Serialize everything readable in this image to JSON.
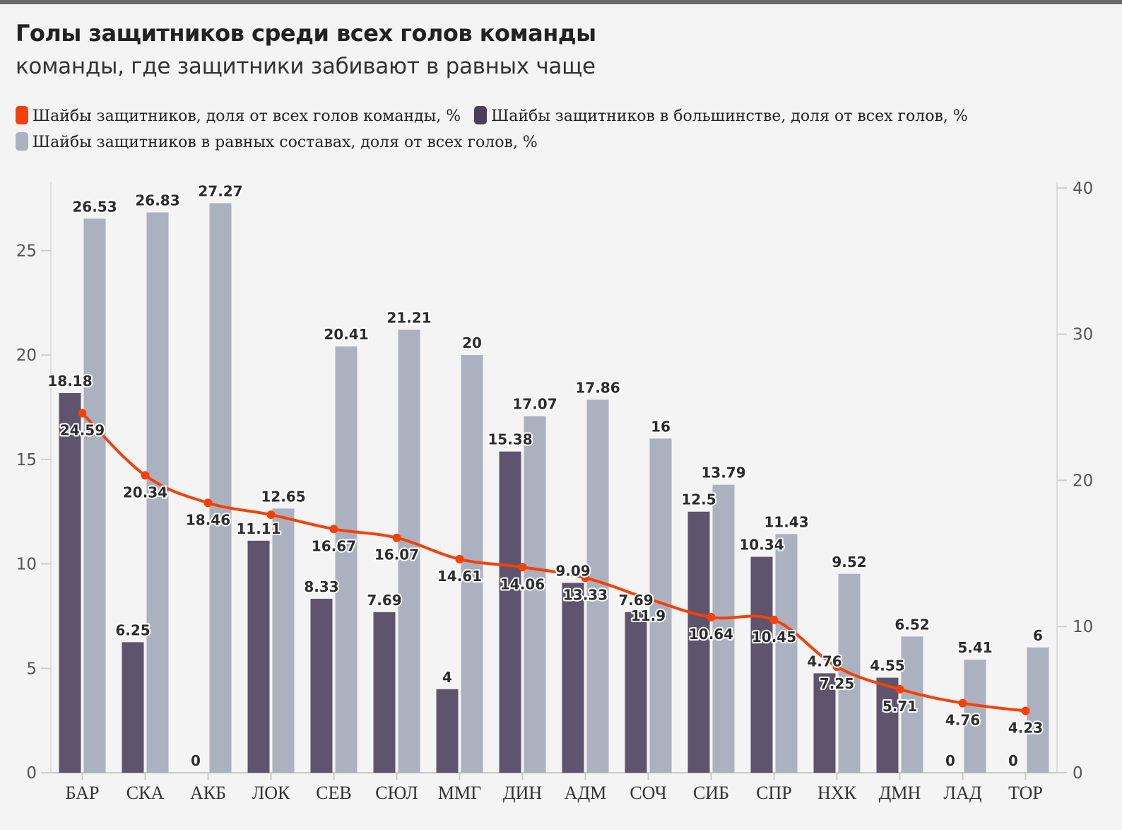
{
  "title": "Голы защитников среди всех голов команды",
  "subtitle": "команды, где защитники забивают в равных чаще",
  "colors": {
    "share_total": "#f4410a",
    "share_pp": "#5f546d",
    "share_ev": "#abb1bf",
    "background": "#f4f4f4"
  },
  "legend": [
    {
      "label": "Шайбы защитников, доля от всех голов команды, %",
      "color": "#f4410a"
    },
    {
      "label": "Шайбы защитников в большинстве, доля от всех голов, %",
      "color": "#4a3f57"
    },
    {
      "label": "Шайбы защитников в равных составах, доля от всех голов, %",
      "color": "#abb1bf"
    }
  ],
  "chart_data": {
    "type": "bar+line",
    "title": "Голы защитников среди всех голов команды",
    "categories": [
      "БАР",
      "СКА",
      "АКБ",
      "ЛОК",
      "СЕВ",
      "СЮЛ",
      "ММГ",
      "ДИН",
      "АДМ",
      "СОЧ",
      "СИБ",
      "СПР",
      "НХК",
      "ДМН",
      "ЛАД",
      "ТОР"
    ],
    "series": [
      {
        "name": "Шайбы защитников в большинстве, доля от всех голов, %",
        "type": "bar",
        "axis": "left",
        "values": [
          18.18,
          6.25,
          0,
          11.11,
          8.33,
          7.69,
          4,
          15.38,
          9.09,
          7.69,
          12.5,
          10.34,
          4.76,
          4.55,
          0,
          0
        ],
        "labels": [
          "18.18",
          "6.25",
          "0",
          "11.11",
          "8.33",
          "7.69",
          "4",
          "15.38",
          "9.09",
          "7.69",
          "12.5",
          "10.34",
          "4.76",
          "4.55",
          "0",
          "0"
        ]
      },
      {
        "name": "Шайбы защитников в равных составах, доля от всех голов, %",
        "type": "bar",
        "axis": "left",
        "values": [
          26.53,
          26.83,
          27.27,
          12.65,
          20.41,
          21.21,
          20,
          17.07,
          17.86,
          16,
          13.79,
          11.43,
          9.52,
          6.52,
          5.41,
          6
        ],
        "labels": [
          "26.53",
          "26.83",
          "27.27",
          "12.65",
          "20.41",
          "21.21",
          "20",
          "17.07",
          "17.86",
          "16",
          "13.79",
          "11.43",
          "9.52",
          "6.52",
          "5.41",
          "6"
        ]
      },
      {
        "name": "Шайбы защитников, доля от всех голов команды, %",
        "type": "line",
        "axis": "right",
        "values": [
          24.59,
          20.34,
          18.46,
          17.65,
          16.67,
          16.07,
          14.61,
          14.06,
          13.33,
          11.9,
          10.64,
          10.45,
          7.25,
          5.71,
          4.76,
          4.23
        ],
        "labels": [
          "24.59",
          "20.34",
          "18.46",
          "",
          "16.67",
          "16.07",
          "14.61",
          "14.06",
          "13.33",
          "11.9",
          "10.64",
          "10.45",
          "7.25",
          "5.71",
          "4.76",
          "4.23"
        ]
      }
    ],
    "y_left": {
      "min": 0,
      "max": 28.3,
      "ticks": [
        "0",
        "5",
        "10",
        "15",
        "20",
        "25"
      ]
    },
    "y_right": {
      "min": 0,
      "max": 40.43,
      "ticks": [
        "0",
        "10",
        "20",
        "30",
        "40"
      ]
    },
    "legend_position": "top"
  }
}
